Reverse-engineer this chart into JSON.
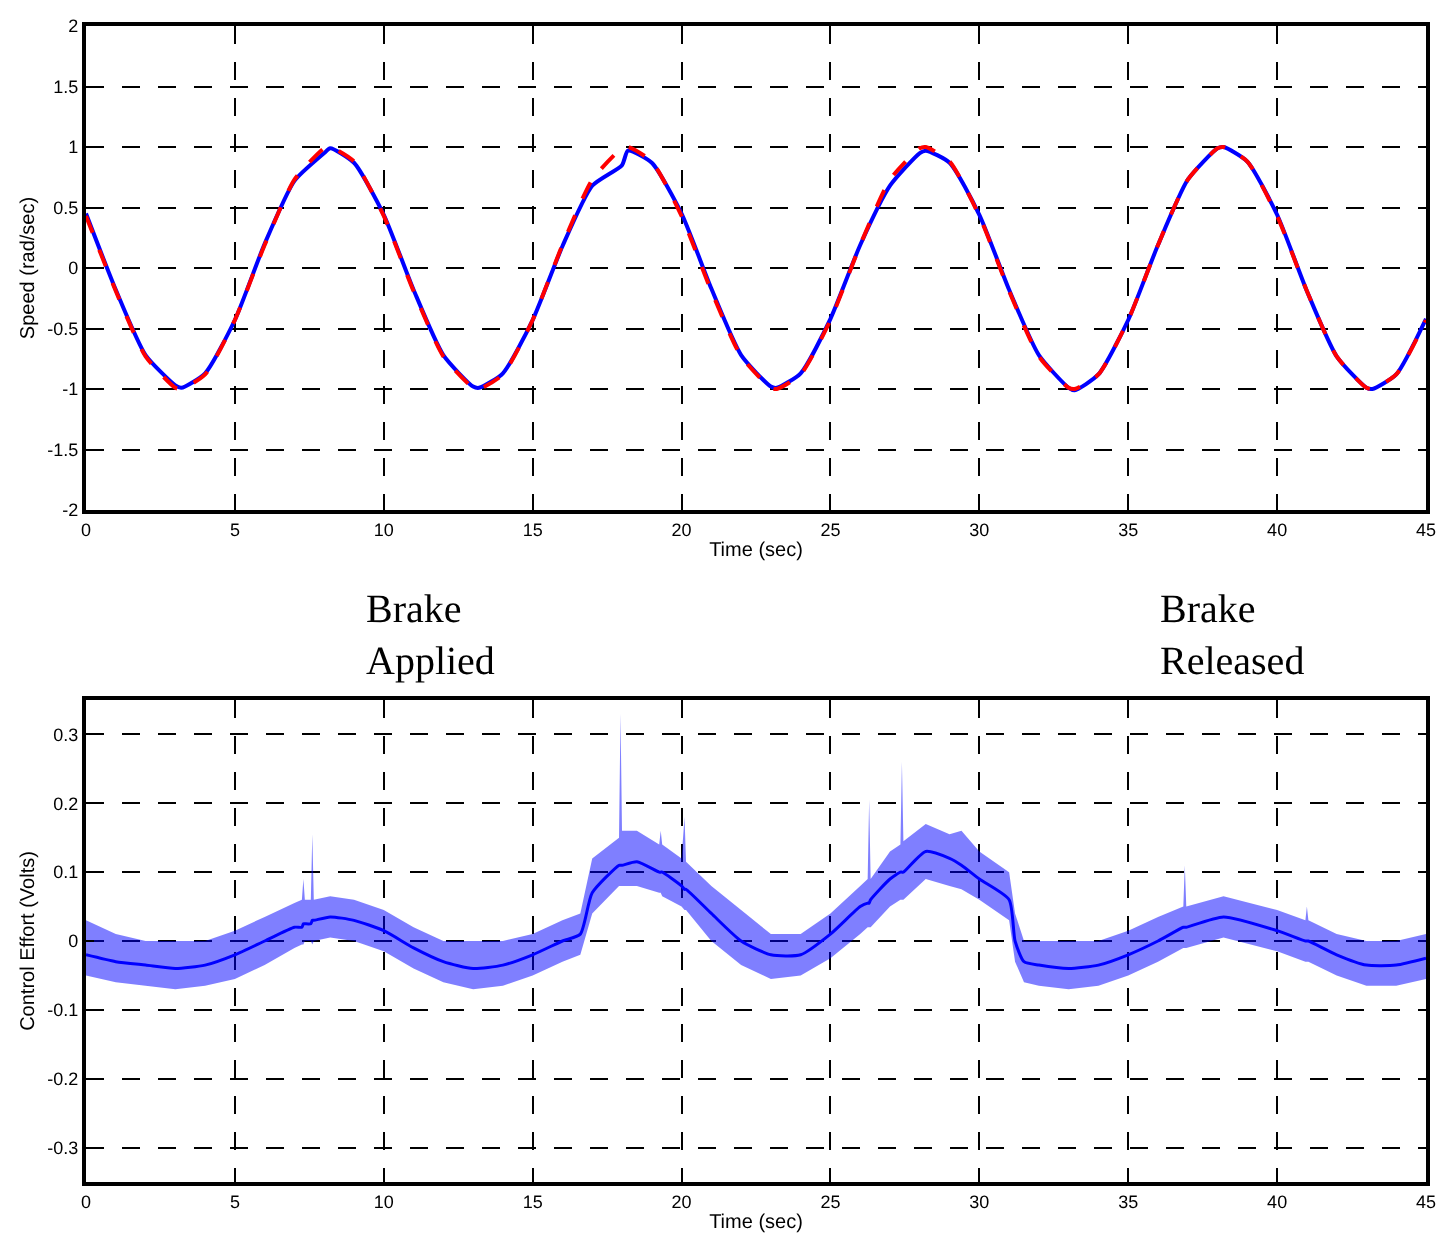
{
  "chart_data": [
    {
      "type": "line",
      "xlabel": "Time (sec)",
      "ylabel": "Speed (rad/sec)",
      "xlim": [
        0,
        45
      ],
      "xticks": [
        0,
        5,
        10,
        15,
        20,
        25,
        30,
        35,
        40,
        45
      ],
      "ylim": [
        -2,
        2
      ],
      "yticks": [
        -2,
        -1.5,
        -1,
        -0.5,
        0,
        0.5,
        1,
        1.5,
        2
      ],
      "grid": true,
      "annotations": [
        "Brake\nApplied",
        "Brake\nReleased"
      ],
      "x": [
        0,
        1,
        2,
        3,
        3.2,
        4,
        5,
        6,
        7,
        8,
        8.2,
        9,
        10,
        11,
        12,
        13,
        13.2,
        14,
        15,
        16,
        17,
        18,
        18.2,
        19,
        20,
        21,
        22,
        23,
        23.2,
        24,
        25,
        26,
        27,
        28,
        28.2,
        29,
        30,
        31,
        32,
        33,
        33.2,
        34,
        35,
        36,
        37,
        38,
        38.2,
        39,
        40,
        41,
        42,
        43,
        43.2,
        44,
        45
      ],
      "series": [
        {
          "color": "#0000ff",
          "line_style": "solid",
          "values": [
            0.45,
            -0.18,
            -0.72,
            -0.97,
            -0.99,
            -0.87,
            -0.43,
            0.2,
            0.72,
            0.95,
            0.99,
            0.87,
            0.44,
            -0.18,
            -0.72,
            -0.98,
            -0.99,
            -0.87,
            -0.43,
            0.18,
            0.68,
            0.85,
            0.97,
            0.87,
            0.45,
            -0.17,
            -0.72,
            -0.98,
            -0.99,
            -0.87,
            -0.42,
            0.19,
            0.68,
            0.95,
            0.97,
            0.87,
            0.44,
            -0.18,
            -0.72,
            -0.99,
            -1.01,
            -0.88,
            -0.43,
            0.19,
            0.73,
            0.99,
            1.0,
            0.88,
            0.44,
            -0.19,
            -0.73,
            -0.99,
            -1,
            -0.88,
            -0.42
          ]
        },
        {
          "color": "#ff0000",
          "line_style": "dashed",
          "values": [
            0.43,
            -0.19,
            -0.73,
            -0.99,
            -1,
            -0.88,
            -0.43,
            0.19,
            0.73,
            0.99,
            1,
            0.88,
            0.43,
            -0.19,
            -0.73,
            -0.99,
            -1,
            -0.88,
            -0.43,
            0.19,
            0.73,
            0.99,
            1,
            0.88,
            0.43,
            -0.19,
            -0.73,
            -0.99,
            -1,
            -0.88,
            -0.43,
            0.19,
            0.73,
            0.99,
            1,
            0.88,
            0.43,
            -0.19,
            -0.73,
            -0.99,
            -1,
            -0.88,
            -0.43,
            0.19,
            0.73,
            0.99,
            1,
            0.88,
            0.43,
            -0.19,
            -0.73,
            -0.99,
            -1,
            -0.88,
            -0.43
          ]
        }
      ]
    },
    {
      "type": "line",
      "xlabel": "Time (sec)",
      "ylabel": "Control Effort (Volts)",
      "xlim": [
        0,
        45
      ],
      "xticks": [
        0,
        5,
        10,
        15,
        20,
        25,
        30,
        35,
        40,
        45
      ],
      "ylim": [
        -0.35,
        0.35
      ],
      "yticks": [
        -0.3,
        -0.2,
        -0.1,
        0,
        0.1,
        0.2,
        0.3
      ],
      "grid": true,
      "x": [
        0,
        1,
        2,
        3,
        4,
        5,
        6,
        7,
        7.25,
        7.3,
        7.35,
        7.55,
        7.6,
        7.65,
        8.2,
        9,
        10,
        11,
        12,
        13,
        14,
        15,
        16,
        16.6,
        17,
        17.9,
        17.95,
        18.0,
        18.5,
        19.25,
        19.3,
        19.35,
        20,
        20.1,
        20.15,
        21,
        22,
        23,
        24,
        25,
        26,
        26.25,
        26.3,
        26.35,
        27,
        27.35,
        27.4,
        27.45,
        28.2,
        29,
        29.4,
        30,
        31,
        31.2,
        31.5,
        32,
        33,
        34,
        35,
        36,
        36.85,
        36.9,
        36.95,
        38.2,
        40,
        40.95,
        41.0,
        41.05,
        42,
        43,
        44,
        45
      ],
      "series": [
        {
          "color": "#0000ff",
          "values": [
            -0.02,
            -0.03,
            -0.035,
            -0.04,
            -0.035,
            -0.02,
            0.0,
            0.02,
            0.02,
            0.025,
            0.025,
            0.025,
            0.03,
            0.03,
            0.035,
            0.03,
            0.015,
            -0.01,
            -0.03,
            -0.04,
            -0.035,
            -0.02,
            0.0,
            0.01,
            0.07,
            0.11,
            0.11,
            0.11,
            0.115,
            0.1,
            0.1,
            0.1,
            0.08,
            0.075,
            0.075,
            0.04,
            0.0,
            -0.02,
            -0.02,
            0.01,
            0.05,
            0.055,
            0.055,
            0.06,
            0.09,
            0.1,
            0.1,
            0.1,
            0.13,
            0.12,
            0.11,
            0.09,
            0.06,
            0.0,
            -0.03,
            -0.035,
            -0.04,
            -0.035,
            -0.02,
            0.0,
            0.02,
            0.02,
            0.02,
            0.035,
            0.015,
            0.0,
            0.0,
            0.0,
            -0.02,
            -0.035,
            -0.035,
            -0.025
          ],
          "lower": [
            -0.05,
            -0.06,
            -0.065,
            -0.07,
            -0.065,
            -0.055,
            -0.035,
            -0.01,
            -0.005,
            -0.005,
            0.0,
            0.0,
            -0.005,
            0.0,
            0.005,
            0.0,
            -0.015,
            -0.04,
            -0.06,
            -0.07,
            -0.065,
            -0.05,
            -0.03,
            -0.02,
            0.04,
            0.08,
            0.08,
            0.08,
            0.08,
            0.07,
            0.07,
            0.065,
            0.05,
            0.045,
            0.045,
            0.0,
            -0.035,
            -0.055,
            -0.05,
            -0.025,
            0.01,
            0.02,
            0.02,
            0.02,
            0.05,
            0.06,
            0.06,
            0.06,
            0.09,
            0.08,
            0.075,
            0.06,
            0.03,
            -0.03,
            -0.06,
            -0.065,
            -0.07,
            -0.065,
            -0.05,
            -0.03,
            -0.01,
            -0.01,
            -0.01,
            0.005,
            -0.015,
            -0.03,
            -0.03,
            -0.03,
            -0.05,
            -0.065,
            -0.065,
            -0.055
          ],
          "upper": [
            0.03,
            0.01,
            0.0,
            0.0,
            0.0,
            0.015,
            0.035,
            0.055,
            0.06,
            0.09,
            0.06,
            0.06,
            0.155,
            0.06,
            0.065,
            0.06,
            0.045,
            0.02,
            0.0,
            0.0,
            0.0,
            0.01,
            0.03,
            0.04,
            0.12,
            0.15,
            0.33,
            0.16,
            0.16,
            0.14,
            0.16,
            0.14,
            0.12,
            0.18,
            0.115,
            0.08,
            0.045,
            0.01,
            0.01,
            0.04,
            0.08,
            0.09,
            0.205,
            0.09,
            0.13,
            0.14,
            0.26,
            0.145,
            0.17,
            0.155,
            0.16,
            0.13,
            0.1,
            0.04,
            0.0,
            0.0,
            0.0,
            0.0,
            0.015,
            0.035,
            0.05,
            0.11,
            0.05,
            0.065,
            0.045,
            0.03,
            0.05,
            0.03,
            0.01,
            0.0,
            0.0,
            0.01
          ]
        }
      ]
    }
  ]
}
